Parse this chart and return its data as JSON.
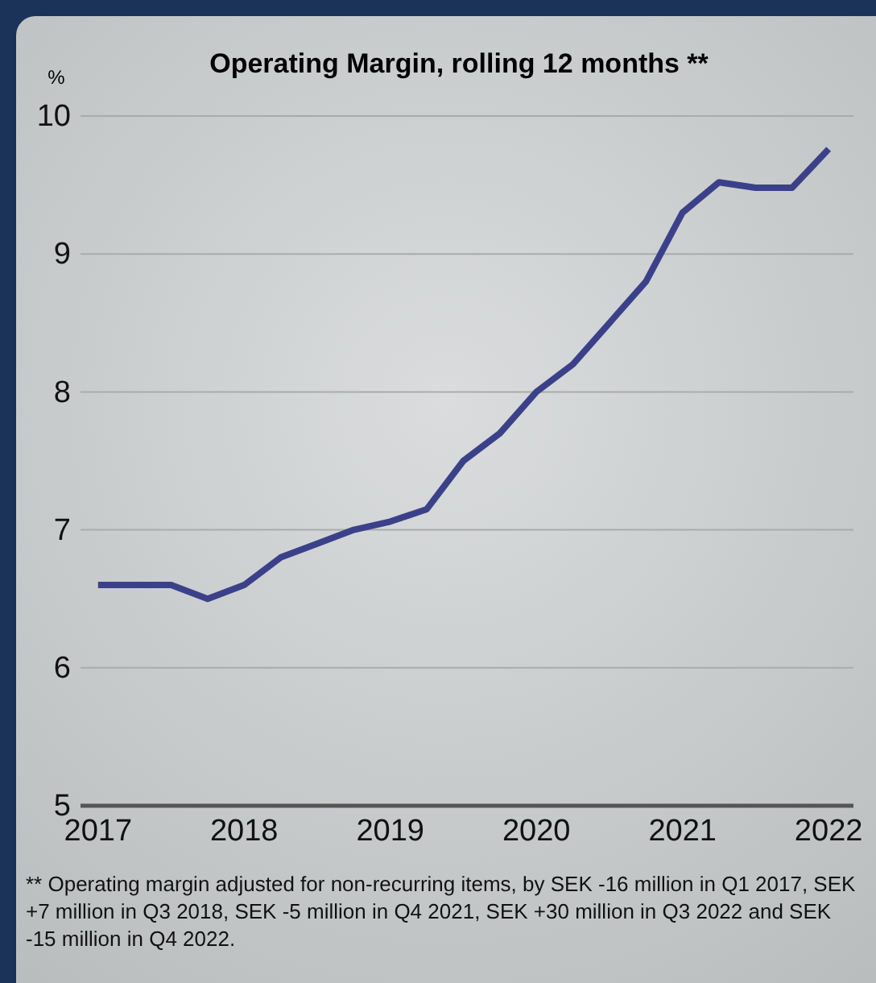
{
  "chart_data": {
    "type": "line",
    "title": "Operating Margin, rolling 12 months **",
    "ylabel": "%",
    "x": [
      2017,
      2017.25,
      2017.5,
      2017.75,
      2018,
      2018.25,
      2018.5,
      2018.75,
      2019,
      2019.25,
      2019.5,
      2019.75,
      2020,
      2020.25,
      2020.5,
      2020.75,
      2021,
      2021.25,
      2021.5,
      2021.75,
      2022
    ],
    "series": [
      {
        "color": "#3b4189",
        "values": [
          6.6,
          6.6,
          6.6,
          6.5,
          6.6,
          6.8,
          6.9,
          7.0,
          7.06,
          7.15,
          7.5,
          7.7,
          8.0,
          8.2,
          8.5,
          8.8,
          9.3,
          9.52,
          9.48,
          9.48,
          9.76
        ]
      }
    ],
    "xlim": [
      2016.88,
      2022.17
    ],
    "xticks": [
      2017,
      2018,
      2019,
      2020,
      2021,
      2022
    ],
    "ylim": [
      5,
      10
    ],
    "yticks": [
      5,
      6,
      7,
      8,
      9,
      10
    ],
    "grid": "y",
    "marker": "none",
    "line_style": "solid",
    "annotations": [
      "** Operating margin adjusted for non-recurring items, by SEK -16 million in Q1 2017, SEK +7 million in Q3 2018, SEK -5 million in Q4 2021, SEK +30 million in Q3 2022 and SEK -15 million in Q4 2022."
    ]
  }
}
